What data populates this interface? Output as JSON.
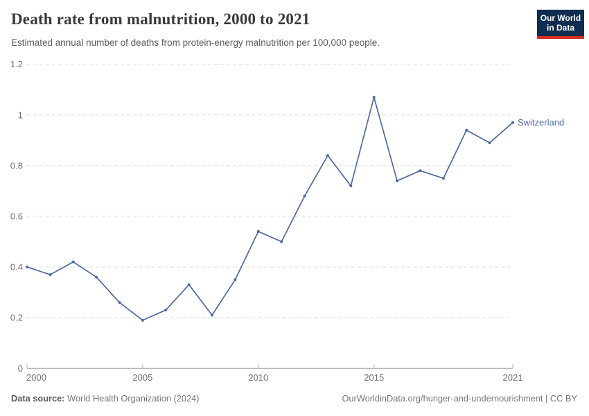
{
  "header": {
    "title": "Death rate from malnutrition, 2000 to 2021",
    "subtitle": "Estimated annual number of deaths from protein-energy malnutrition per 100,000 people.",
    "logo_line1": "Our World",
    "logo_line2": "in Data"
  },
  "colors": {
    "series_blue": "#4c6a9c",
    "logo_background": "#102d50",
    "logo_red_bar": "#d42b22",
    "gridline": "#dcdcdc",
    "axis_line": "#9e9e9e",
    "tick_label": "#6e6e6e"
  },
  "chart_data": {
    "type": "line",
    "title": "Death rate from malnutrition, 2000 to 2021",
    "subtitle": "Estimated annual number of deaths from protein-energy malnutrition per 100,000 people.",
    "xlabel": "",
    "ylabel": "",
    "x": [
      2000,
      2001,
      2002,
      2003,
      2004,
      2005,
      2006,
      2007,
      2008,
      2009,
      2010,
      2011,
      2012,
      2013,
      2014,
      2015,
      2016,
      2017,
      2018,
      2019,
      2020,
      2021
    ],
    "series": [
      {
        "name": "Switzerland",
        "color": "#4c6a9c",
        "values": [
          0.4,
          0.37,
          0.42,
          0.36,
          0.26,
          0.19,
          0.23,
          0.33,
          0.21,
          0.35,
          0.54,
          0.5,
          0.68,
          0.84,
          0.72,
          1.07,
          0.74,
          0.78,
          0.75,
          0.94,
          0.89,
          0.97
        ]
      }
    ],
    "xlim": [
      2000,
      2021
    ],
    "ylim": [
      0,
      1.2
    ],
    "x_tick_labels": [
      "2000",
      "2005",
      "2010",
      "2015",
      "2021"
    ],
    "x_ticks": [
      2000,
      2005,
      2010,
      2015,
      2021
    ],
    "y_ticks": [
      0,
      0.2,
      0.4,
      0.6,
      0.8,
      1,
      1.2
    ],
    "y_tick_labels": [
      "0",
      "0.2",
      "0.4",
      "0.6",
      "0.8",
      "1",
      "1.2"
    ],
    "grid": "horizontal-dashed",
    "legend_position": "end-of-line-label",
    "end_label": "Switzerland"
  },
  "footer": {
    "source_label": "Data source:",
    "source_text": "World Health Organization (2024)",
    "license": "OurWorldinData.org/hunger-and-undernourishment | CC BY"
  }
}
